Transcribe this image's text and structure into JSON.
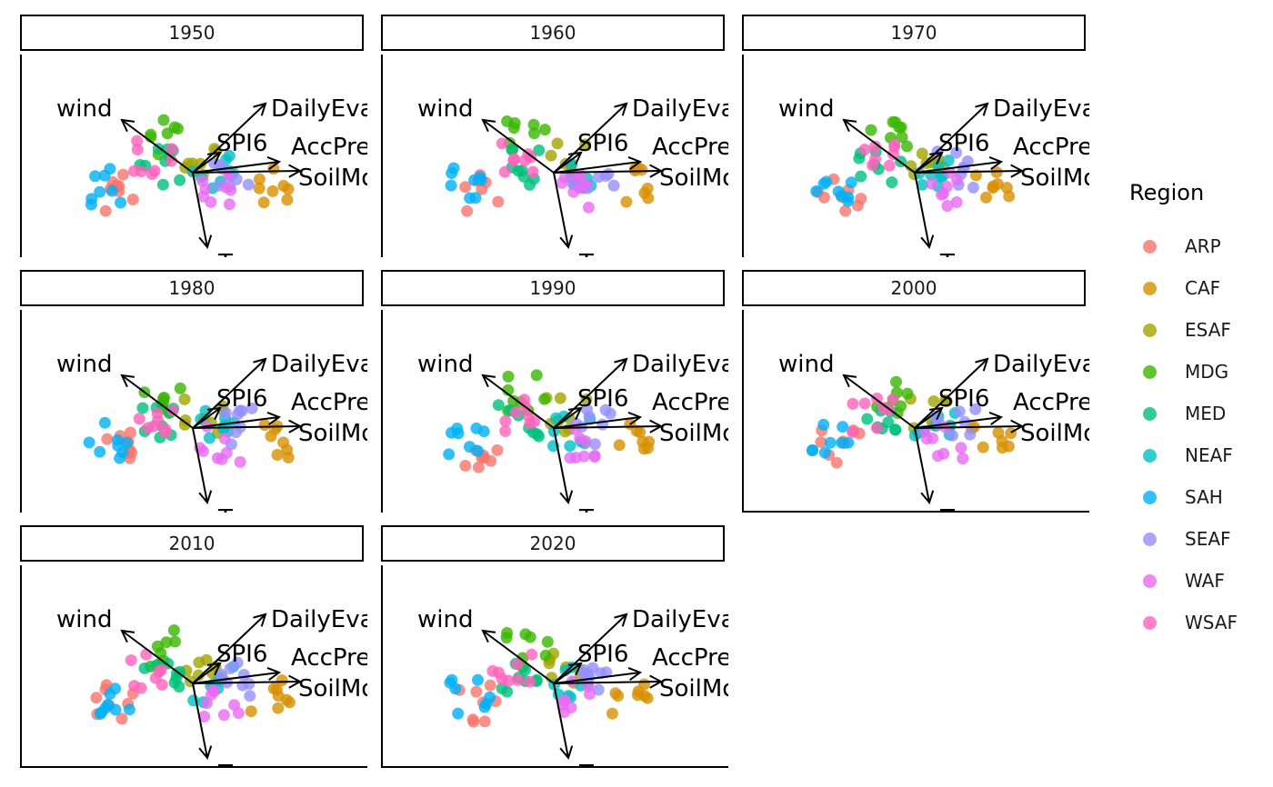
{
  "chart_data": {
    "type": "scatter",
    "subtype": "faceted PCA biplot",
    "facets": [
      "1950",
      "1960",
      "1970",
      "1980",
      "1990",
      "2000",
      "2010",
      "2020"
    ],
    "legend": {
      "title": "Region",
      "entries": [
        {
          "name": "ARP",
          "color": "#F8766D"
        },
        {
          "name": "CAF",
          "color": "#D89000"
        },
        {
          "name": "ESAF",
          "color": "#A3A500"
        },
        {
          "name": "MDG",
          "color": "#39B600"
        },
        {
          "name": "MED",
          "color": "#00BF7D"
        },
        {
          "name": "NEAF",
          "color": "#00BFC4"
        },
        {
          "name": "SAH",
          "color": "#00B0F6"
        },
        {
          "name": "SEAF",
          "color": "#9590FF"
        },
        {
          "name": "WAF",
          "color": "#E76BF3"
        },
        {
          "name": "WSAF",
          "color": "#FF62BC"
        }
      ],
      "placement": "right"
    },
    "loadings": [
      {
        "name": "wind",
        "x": -0.45,
        "y": 0.35
      },
      {
        "name": "DailyEvap",
        "x": 0.45,
        "y": 0.45
      },
      {
        "name": "SPI6",
        "x": 0.12,
        "y": 0.1
      },
      {
        "name": "AccPrec",
        "x": 0.55,
        "y": 0.12
      },
      {
        "name": "SoilMoist",
        "x": 0.58,
        "y": 0.0
      },
      {
        "name": "Temp",
        "x": 0.1,
        "y": -0.55
      }
    ],
    "loading_labels": [
      "wind",
      "DailyEva",
      "SPI6",
      "AccPrec",
      "SoilMo",
      "Temp"
    ],
    "region_centers": {
      "ARP": [
        -0.55,
        -0.15
      ],
      "CAF": [
        0.55,
        -0.1
      ],
      "ESAF": [
        0.1,
        0.1
      ],
      "MDG": [
        -0.2,
        0.25
      ],
      "MED": [
        -0.25,
        0.05
      ],
      "NEAF": [
        0.15,
        0.0
      ],
      "SAH": [
        -0.62,
        -0.1
      ],
      "SEAF": [
        0.3,
        0.02
      ],
      "WAF": [
        0.2,
        -0.12
      ],
      "WSAF": [
        -0.3,
        0.1
      ]
    },
    "points_per_region": 8,
    "grid": false,
    "axes": "bottom and left lines only"
  }
}
